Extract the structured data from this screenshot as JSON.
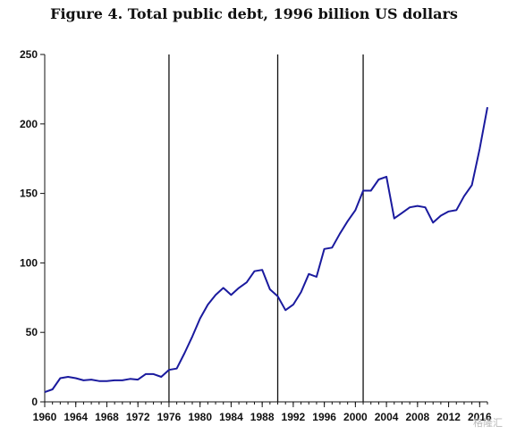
{
  "chart_data": {
    "type": "line",
    "title": "Figure 4. Total public debt, 1996 billion US dollars",
    "xlabel": "",
    "ylabel": "",
    "xlim": [
      1960,
      2017
    ],
    "ylim": [
      0,
      250
    ],
    "y_ticks": [
      0,
      50,
      100,
      150,
      200,
      250
    ],
    "x_ticks": [
      1960,
      1964,
      1968,
      1972,
      1976,
      1980,
      1984,
      1988,
      1992,
      1996,
      2000,
      2004,
      2008,
      2012,
      2016
    ],
    "vertical_lines": [
      1976,
      1990,
      2001
    ],
    "grid": false,
    "legend": "none",
    "line_color": "#1a1a9e",
    "series": [
      {
        "x": [
          1960,
          1961,
          1962,
          1963,
          1964,
          1965,
          1966,
          1967,
          1968,
          1969,
          1970,
          1971,
          1972,
          1973,
          1974,
          1975,
          1976,
          1977,
          1978,
          1979,
          1980,
          1981,
          1982,
          1983,
          1984,
          1985,
          1986,
          1987,
          1988,
          1989,
          1990,
          1991,
          1992,
          1993,
          1994,
          1995,
          1996,
          1997,
          1998,
          1999,
          2000,
          2001,
          2002,
          2003,
          2004,
          2005,
          2006,
          2007,
          2008,
          2009,
          2010,
          2011,
          2012,
          2013,
          2014,
          2015,
          2016,
          2017
        ],
        "y": [
          7,
          9,
          17,
          18,
          17,
          15.5,
          16,
          15,
          15,
          15.5,
          15.5,
          16.5,
          16,
          20,
          20,
          18,
          23,
          24,
          35,
          47,
          60,
          70,
          77,
          82,
          77,
          82,
          86,
          94,
          95,
          81,
          76,
          66,
          70,
          79,
          92,
          90,
          110,
          111,
          121,
          130,
          138,
          152,
          152,
          160,
          162,
          132,
          136,
          140,
          141,
          140,
          129,
          134,
          137,
          138,
          148,
          156,
          182,
          212
        ]
      }
    ],
    "watermark": "格隆汇"
  }
}
